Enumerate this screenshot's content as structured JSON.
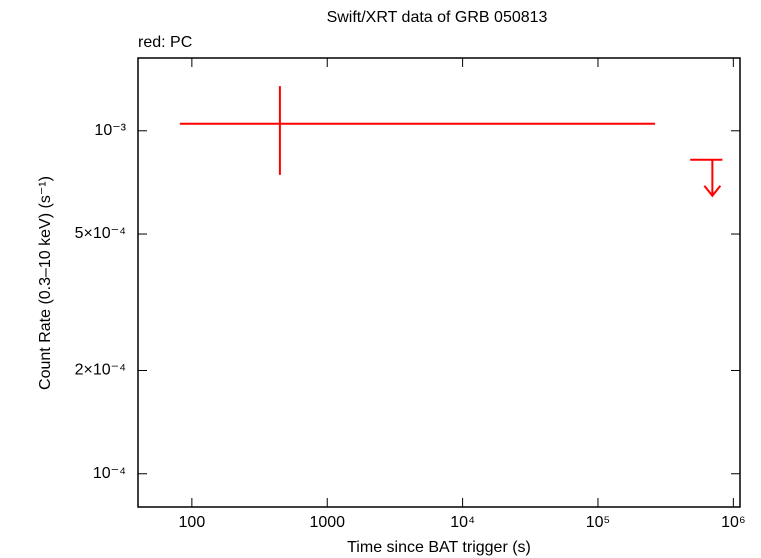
{
  "chart_data": {
    "type": "scatter",
    "title": "Swift/XRT data of GRB 050813",
    "x_label": "Time since BAT trigger (s)",
    "y_label": "Count Rate (0.3–10 keV) (s⁻¹)",
    "log_x": true,
    "log_y": true,
    "xlim": [
      40,
      1120000
    ],
    "ylim": [
      8e-05,
      0.00163
    ],
    "xticks": [
      100,
      1000,
      {
        "value": 10000,
        "label": "10⁴"
      },
      {
        "value": 100000,
        "label": "10⁵"
      },
      {
        "value": 1000000,
        "label": "10⁶"
      }
    ],
    "yticks": [
      {
        "value": 0.0001,
        "label": "10⁻⁴"
      },
      {
        "value": 0.0002,
        "label": "2×10⁻⁴"
      },
      {
        "value": 0.0005,
        "label": "5×10⁻⁴"
      },
      {
        "value": 0.001,
        "label": "10⁻³"
      }
    ],
    "series": [
      {
        "name": "red: PC",
        "color": "#ff0000",
        "x": [
          447
        ],
        "x_low": [
          81.5
        ],
        "x_high": [
          264000
        ],
        "values": [
          0.001048
        ],
        "y_low": [
          0.000744
        ],
        "y_high": [
          0.00135
        ],
        "upper_limits": {
          "x": [
            700000
          ],
          "x_low": [
            480000
          ],
          "x_high": [
            830000
          ],
          "values": [
            0.000823
          ]
        }
      }
    ]
  }
}
